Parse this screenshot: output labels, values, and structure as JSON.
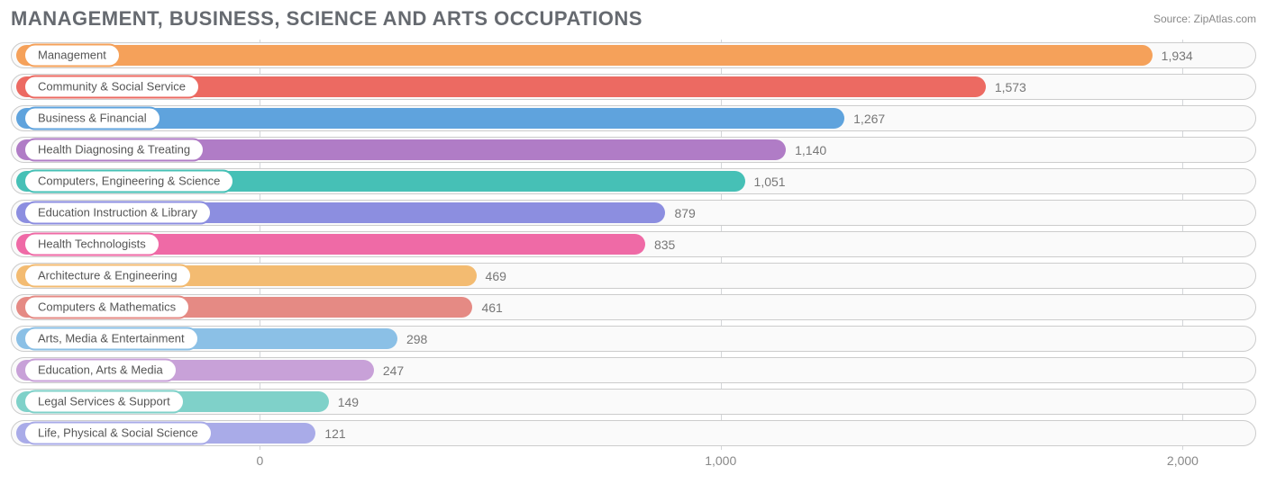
{
  "title": "MANAGEMENT, BUSINESS, SCIENCE AND ARTS OCCUPATIONS",
  "source_label": "Source:",
  "source_value": "ZipAtlas.com",
  "chart": {
    "type": "bar-horizontal",
    "background_color": "#ffffff",
    "track_border_color": "#cccccc",
    "track_bg_color": "#fafafa",
    "grid_color": "#d4d6d9",
    "label_color": "#555555",
    "value_color": "#777777",
    "title_color": "#666a70",
    "title_fontsize": 22,
    "label_fontsize": 13,
    "value_fontsize": 14,
    "bar_origin_pct": 20.0,
    "xlim": [
      -540,
      2160
    ],
    "xticks": [
      {
        "value": 0,
        "label": "0",
        "pos_pct": 20.0
      },
      {
        "value": 1000,
        "label": "1,000",
        "pos_pct": 57.0
      },
      {
        "value": 2000,
        "label": "2,000",
        "pos_pct": 94.1
      }
    ],
    "bars": [
      {
        "label": "Management",
        "value": 1934,
        "display": "1,934",
        "color": "#f5a15a",
        "pill_border": "#f5a15a"
      },
      {
        "label": "Community & Social Service",
        "value": 1573,
        "display": "1,573",
        "color": "#ec6a62",
        "pill_border": "#ec6a62"
      },
      {
        "label": "Business & Financial",
        "value": 1267,
        "display": "1,267",
        "color": "#5fa3dd",
        "pill_border": "#5fa3dd"
      },
      {
        "label": "Health Diagnosing & Treating",
        "value": 1140,
        "display": "1,140",
        "color": "#b07cc6",
        "pill_border": "#b07cc6"
      },
      {
        "label": "Computers, Engineering & Science",
        "value": 1051,
        "display": "1,051",
        "color": "#46c0b6",
        "pill_border": "#46c0b6"
      },
      {
        "label": "Education Instruction & Library",
        "value": 879,
        "display": "879",
        "color": "#8c8ee0",
        "pill_border": "#8c8ee0"
      },
      {
        "label": "Health Technologists",
        "value": 835,
        "display": "835",
        "color": "#ef6aa6",
        "pill_border": "#ef6aa6"
      },
      {
        "label": "Architecture & Engineering",
        "value": 469,
        "display": "469",
        "color": "#f3bb71",
        "pill_border": "#f3bb71"
      },
      {
        "label": "Computers & Mathematics",
        "value": 461,
        "display": "461",
        "color": "#e58a84",
        "pill_border": "#e58a84"
      },
      {
        "label": "Arts, Media & Entertainment",
        "value": 298,
        "display": "298",
        "color": "#8bc0e6",
        "pill_border": "#8bc0e6"
      },
      {
        "label": "Education, Arts & Media",
        "value": 247,
        "display": "247",
        "color": "#c8a1d8",
        "pill_border": "#c8a1d8"
      },
      {
        "label": "Legal Services & Support",
        "value": 149,
        "display": "149",
        "color": "#7fd1c9",
        "pill_border": "#7fd1c9"
      },
      {
        "label": "Life, Physical & Social Science",
        "value": 121,
        "display": "121",
        "color": "#a9abe8",
        "pill_border": "#a9abe8"
      }
    ]
  }
}
